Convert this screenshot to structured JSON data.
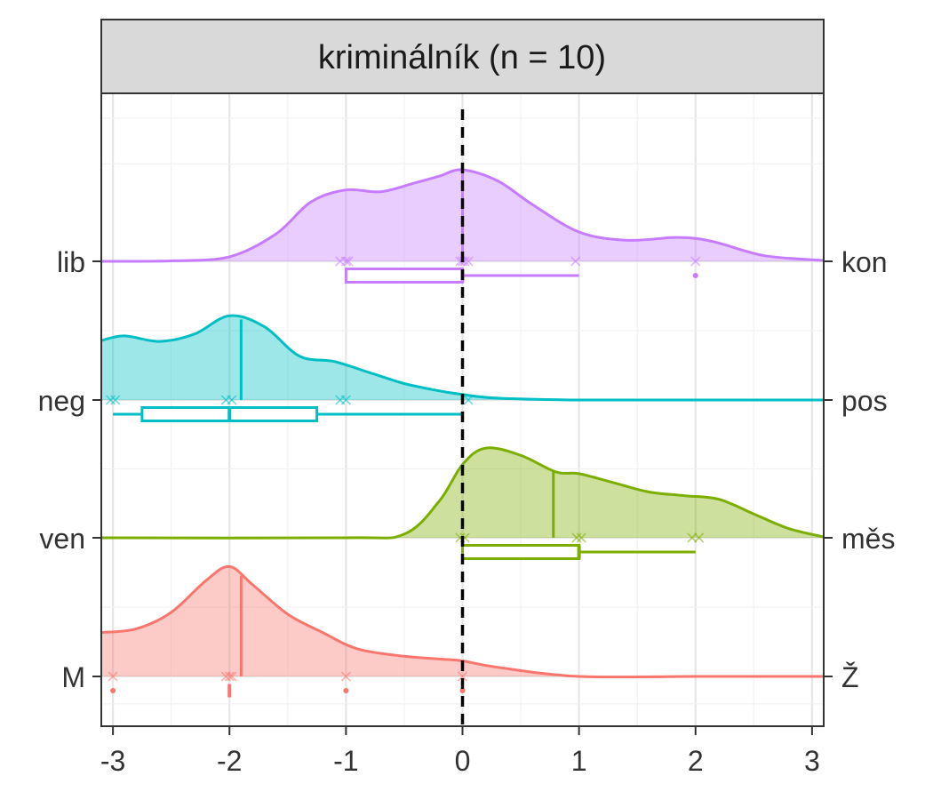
{
  "chart_data": {
    "type": "ridgeline",
    "title": "kriminálník (n = 10)",
    "xlabel": "",
    "ylabel": "",
    "xlim": [
      -3.1,
      3.1
    ],
    "x_ticks": [
      -3,
      -2,
      -1,
      0,
      1,
      2,
      3
    ],
    "x_tick_labels": [
      "-3",
      "-2",
      "-1",
      "0",
      "1",
      "2",
      "3"
    ],
    "reference_line_x": 0,
    "grid": true,
    "series": [
      {
        "left_label": "lib",
        "right_label": "kon",
        "color": "#C77CFF",
        "median": 0,
        "box": {
          "q1": -1,
          "median": 0,
          "q3": 0,
          "whisker_low": -1,
          "whisker_high": 1,
          "outliers": [
            2
          ]
        },
        "points": [
          -1.05,
          -1,
          -0.98,
          -0.02,
          0,
          0.02,
          0.05,
          0.97,
          2
        ],
        "density_x": [
          -3.1,
          -2.5,
          -2.0,
          -1.6,
          -1.3,
          -1.0,
          -0.7,
          -0.4,
          -0.2,
          0.0,
          0.3,
          0.6,
          1.0,
          1.4,
          1.8,
          2.0,
          2.2,
          2.6,
          3.1
        ],
        "density_y": [
          0.0,
          0.005,
          0.05,
          0.3,
          0.65,
          0.78,
          0.76,
          0.86,
          0.93,
          1.0,
          0.88,
          0.62,
          0.32,
          0.23,
          0.26,
          0.25,
          0.2,
          0.06,
          0.01
        ]
      },
      {
        "left_label": "neg",
        "right_label": "pos",
        "color": "#00BFC4",
        "median": -1.9,
        "box": {
          "q1": -2.75,
          "median": -2,
          "q3": -1.25,
          "whisker_low": -3,
          "whisker_high": 0,
          "outliers": []
        },
        "points": [
          -3.02,
          -2.98,
          -2.03,
          -1.98,
          -1.05,
          -1,
          0.05
        ],
        "density_x": [
          -3.1,
          -2.9,
          -2.6,
          -2.3,
          -2.0,
          -1.7,
          -1.4,
          -1.1,
          -0.8,
          -0.5,
          -0.2,
          0.0,
          0.3,
          1.0,
          2.0,
          3.1
        ],
        "density_y": [
          0.65,
          0.7,
          0.64,
          0.72,
          0.92,
          0.8,
          0.48,
          0.42,
          0.3,
          0.18,
          0.1,
          0.06,
          0.02,
          0.0,
          0.0,
          0.0
        ]
      },
      {
        "left_label": "ven",
        "right_label": "měs",
        "color": "#7CAE00",
        "median": 0.78,
        "box": {
          "q1": 0,
          "median": 1,
          "q3": 1,
          "whisker_low": 0,
          "whisker_high": 2,
          "outliers": []
        },
        "points": [
          -0.02,
          0.02,
          0.98,
          1.02,
          1.97,
          2.03
        ],
        "density_x": [
          -3.1,
          -1.0,
          -0.5,
          -0.2,
          0.0,
          0.2,
          0.5,
          0.8,
          1.0,
          1.3,
          1.6,
          1.9,
          2.2,
          2.5,
          2.8,
          3.1
        ],
        "density_y": [
          0.0,
          0.0,
          0.04,
          0.4,
          0.8,
          0.98,
          0.9,
          0.72,
          0.7,
          0.6,
          0.5,
          0.46,
          0.42,
          0.26,
          0.1,
          0.01
        ]
      },
      {
        "left_label": "M",
        "right_label": "Ž",
        "color": "#F8766D",
        "median": -1.9,
        "box": {
          "q1": -2,
          "median": -2,
          "q3": -2,
          "whisker_low": -2,
          "whisker_high": -2,
          "outliers": [
            -3,
            -1,
            0
          ]
        },
        "points": [
          -3,
          -2.03,
          -2,
          -1.98,
          -1,
          0
        ],
        "density_x": [
          -3.1,
          -2.8,
          -2.5,
          -2.2,
          -2.0,
          -1.8,
          -1.5,
          -1.2,
          -0.9,
          -0.5,
          -0.2,
          0.0,
          0.3,
          1.0,
          2.0,
          3.1
        ],
        "density_y": [
          0.48,
          0.52,
          0.7,
          1.05,
          1.2,
          1.0,
          0.68,
          0.48,
          0.3,
          0.22,
          0.19,
          0.17,
          0.1,
          0.0,
          0.0,
          0.0
        ]
      }
    ]
  }
}
